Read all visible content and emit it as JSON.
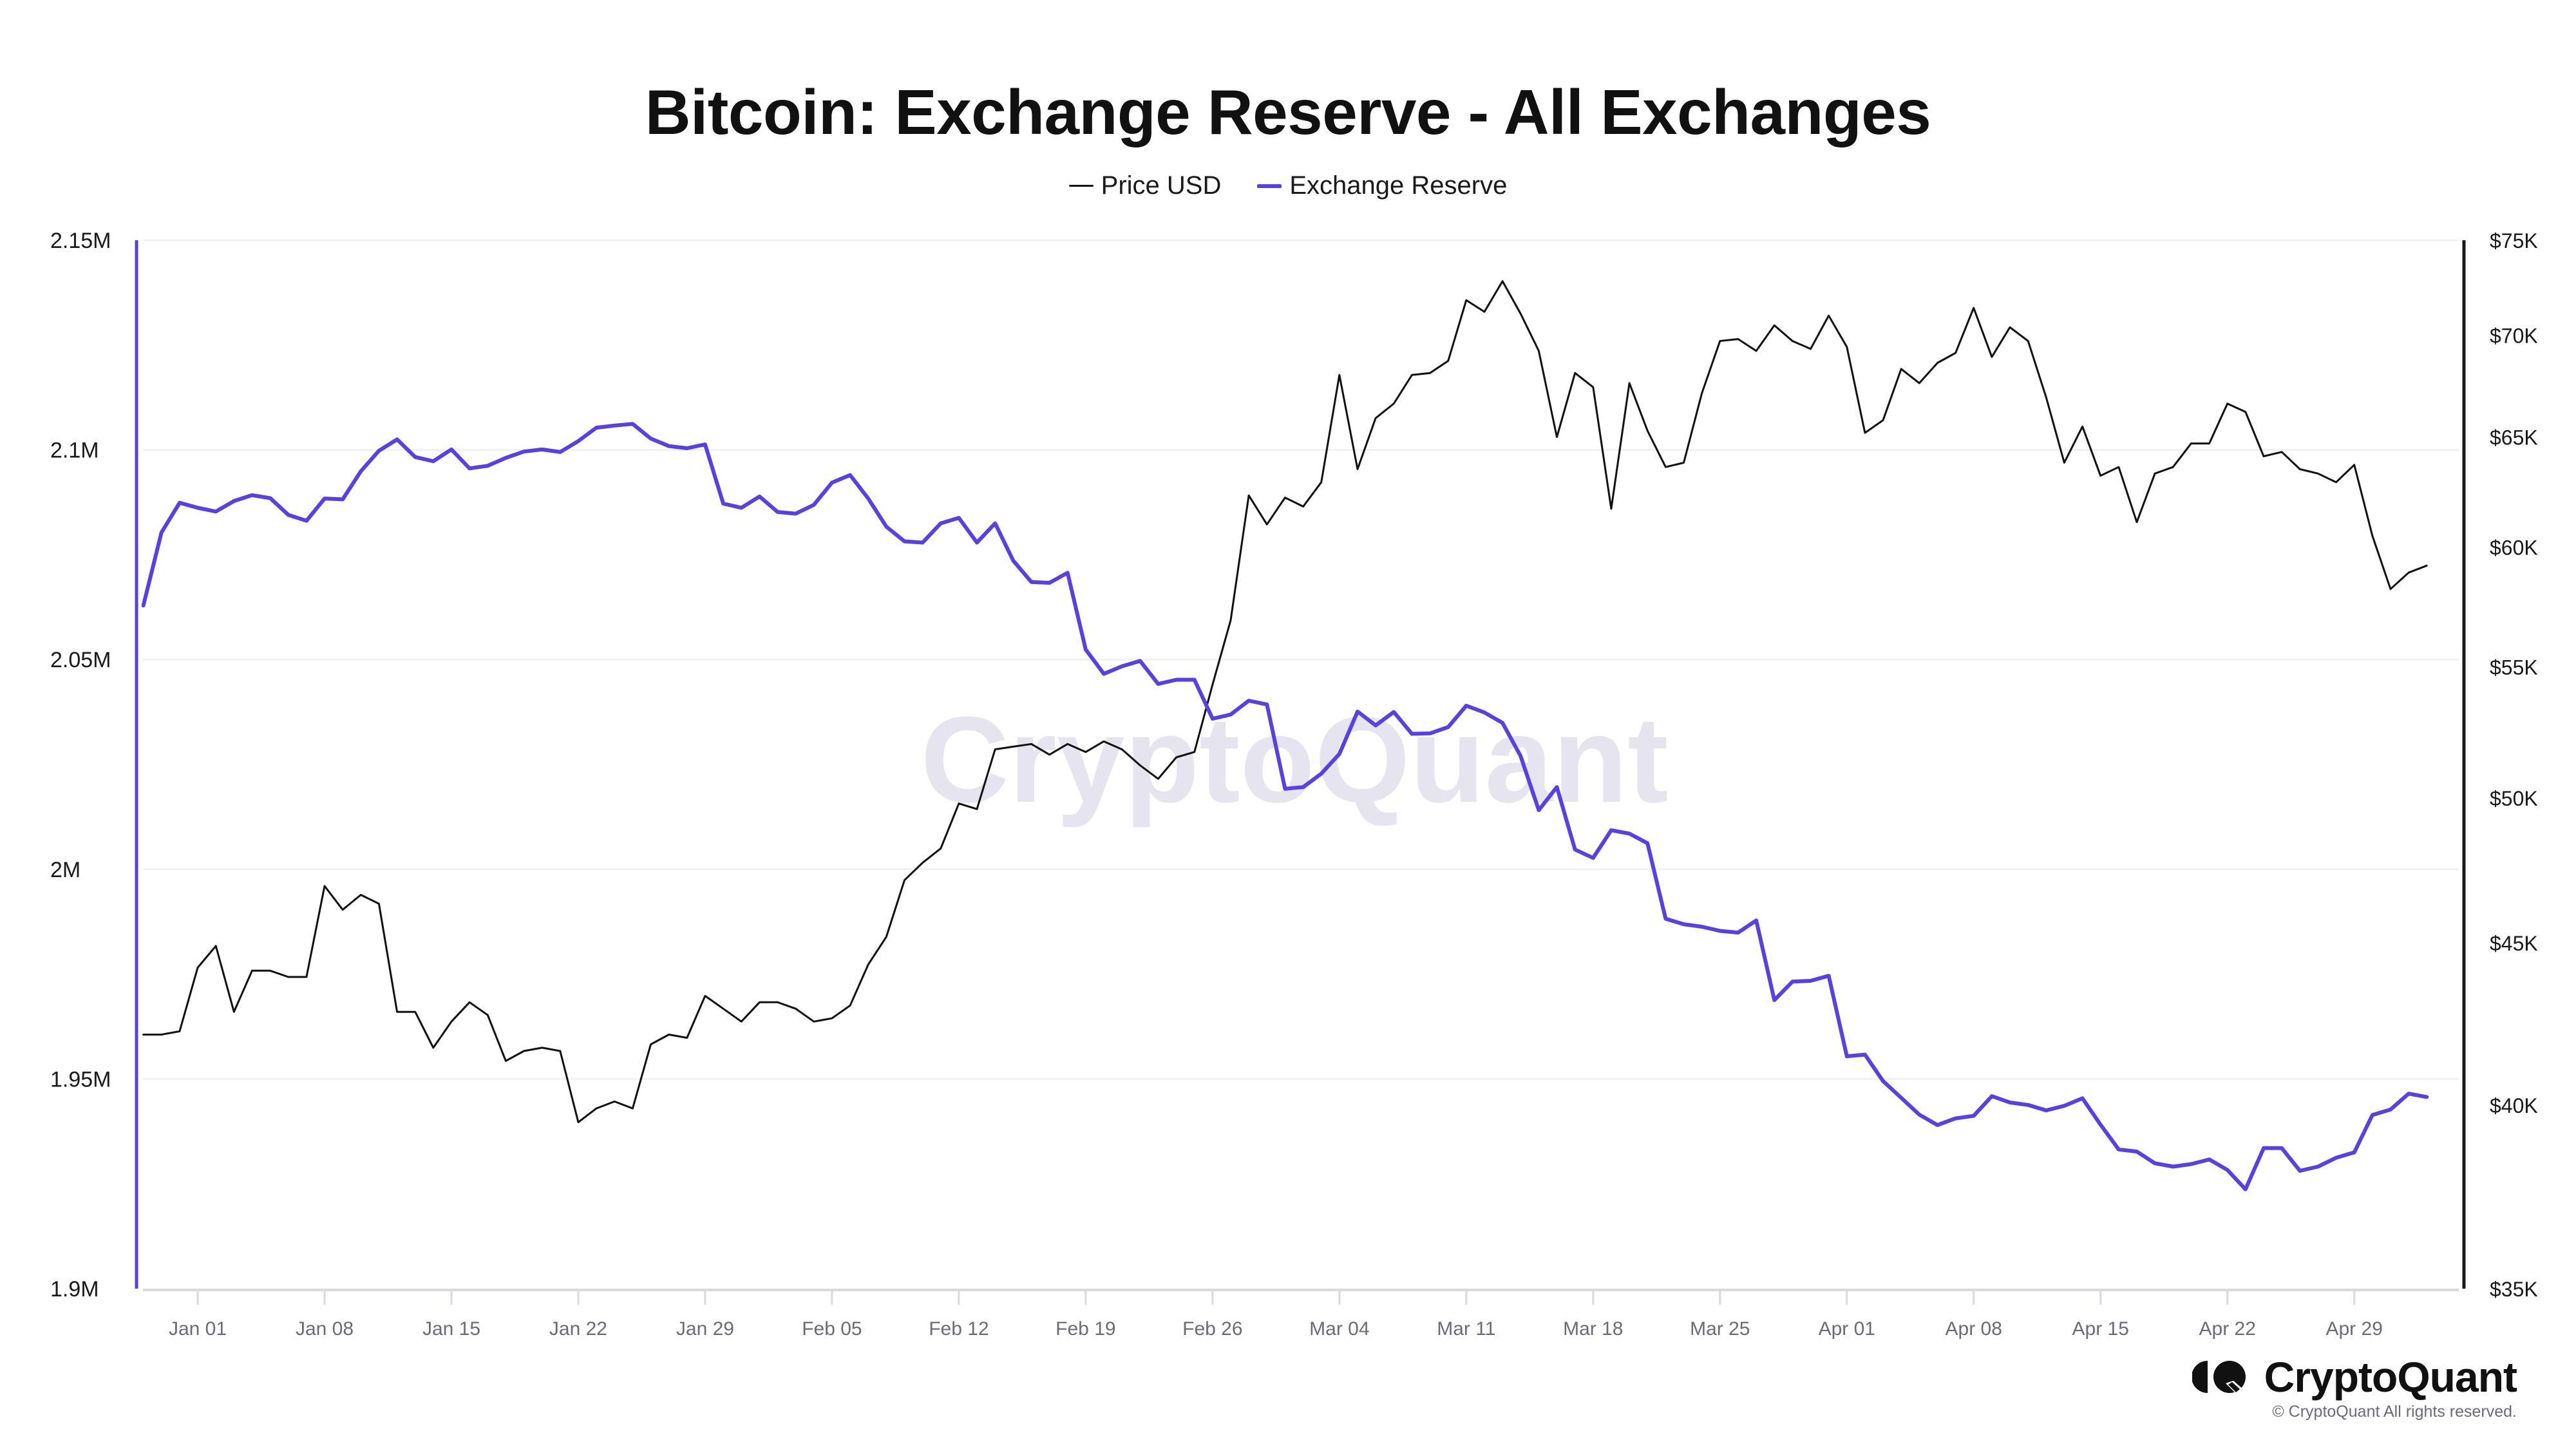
{
  "title": "Bitcoin: Exchange Reserve - All Exchanges",
  "legend": [
    {
      "label": "Price USD",
      "color": "#111111"
    },
    {
      "label": "Exchange Reserve",
      "color": "#5b3fe6"
    }
  ],
  "watermark": "CryptoQuant",
  "brand": {
    "name": "CryptoQuant",
    "copyright": "© CryptoQuant All rights reserved."
  },
  "chart_data": {
    "type": "line",
    "title": "Bitcoin: Exchange Reserve - All Exchanges",
    "xlabel": "",
    "x_start": "Dec 29",
    "x_end": "May 03",
    "x_interval": "daily",
    "x_tick_labels": [
      "Jan 01",
      "Jan 08",
      "Jan 15",
      "Jan 22",
      "Jan 29",
      "Feb 05",
      "Feb 12",
      "Feb 19",
      "Feb 26",
      "Mar 04",
      "Mar 11",
      "Mar 18",
      "Mar 25",
      "Apr 01",
      "Apr 08",
      "Apr 15",
      "Apr 22",
      "Apr 29"
    ],
    "x_tick_indices": [
      3,
      10,
      17,
      24,
      31,
      38,
      45,
      52,
      59,
      66,
      73,
      80,
      87,
      94,
      101,
      108,
      115,
      122
    ],
    "legend_position": "top-center",
    "grid": true,
    "left_axis": {
      "label": "Exchange Reserve",
      "range": [
        1900000,
        2150000
      ],
      "scale": "linear",
      "tick_values": [
        1900000,
        1950000,
        2000000,
        2050000,
        2100000,
        2150000
      ],
      "tick_labels": [
        "1.9M",
        "1.95M",
        "2M",
        "2.05M",
        "2.1M",
        "2.15M"
      ]
    },
    "right_axis": {
      "label": "Price USD",
      "range": [
        35000,
        75000
      ],
      "scale": "log",
      "tick_values": [
        35000,
        40000,
        45000,
        50000,
        55000,
        60000,
        65000,
        70000,
        75000
      ],
      "tick_labels": [
        "$35K",
        "$40K",
        "$45K",
        "$50K",
        "$55K",
        "$60K",
        "$65K",
        "$70K",
        "$75K"
      ]
    },
    "series": [
      {
        "name": "Price USD",
        "axis": "right",
        "color": "#111111",
        "values": [
          42100,
          42100,
          42200,
          44200,
          44900,
          42800,
          44100,
          44100,
          43900,
          43900,
          46900,
          46100,
          46600,
          46300,
          42800,
          42800,
          41700,
          42500,
          43100,
          42700,
          41300,
          41600,
          41700,
          41600,
          39500,
          39900,
          40100,
          39900,
          41800,
          42100,
          42000,
          43300,
          42900,
          42500,
          43100,
          43100,
          42900,
          42500,
          42600,
          43000,
          44300,
          45200,
          47100,
          47700,
          48200,
          49800,
          49600,
          51800,
          51900,
          52000,
          51600,
          52000,
          51700,
          52100,
          51800,
          51200,
          50700,
          51500,
          51700,
          54300,
          56900,
          62300,
          61000,
          62200,
          61800,
          62900,
          68000,
          63500,
          65900,
          66600,
          68000,
          68100,
          68700,
          71800,
          71200,
          72800,
          71100,
          69200,
          65000,
          68100,
          67400,
          61700,
          67600,
          65300,
          63600,
          63800,
          67100,
          69700,
          69800,
          69200,
          70500,
          69700,
          69300,
          71000,
          69400,
          65200,
          65800,
          68300,
          67600,
          68600,
          69100,
          71400,
          68900,
          70400,
          69700,
          66900,
          63800,
          65500,
          63200,
          63600,
          61100,
          63300,
          63600,
          64700,
          64700,
          66600,
          66200,
          64100,
          64300,
          63500,
          63300,
          62900,
          63700,
          60500,
          58200,
          58900,
          59200
        ]
      },
      {
        "name": "Exchange Reserve",
        "axis": "left",
        "color": "#5b3fe6",
        "values": [
          2062900,
          2080300,
          2087400,
          2086200,
          2085300,
          2087800,
          2089200,
          2088500,
          2084500,
          2083100,
          2088400,
          2088200,
          2094900,
          2099800,
          2102500,
          2098300,
          2097300,
          2100100,
          2095600,
          2096200,
          2098100,
          2099600,
          2100100,
          2099500,
          2102100,
          2105300,
          2105800,
          2106200,
          2102700,
          2100900,
          2100400,
          2101300,
          2087200,
          2086200,
          2088900,
          2085200,
          2084800,
          2086900,
          2092200,
          2094000,
          2088400,
          2081700,
          2078200,
          2077900,
          2082500,
          2083800,
          2077900,
          2082500,
          2073600,
          2068500,
          2068300,
          2070700,
          2052400,
          2046600,
          2048400,
          2049700,
          2044200,
          2045200,
          2045200,
          2035900,
          2036900,
          2040200,
          2039300,
          2019200,
          2019600,
          2022800,
          2027500,
          2037600,
          2034300,
          2037500,
          2032300,
          2032400,
          2033900,
          2039000,
          2037400,
          2034900,
          2027000,
          2014100,
          2019600,
          2004700,
          2002700,
          2009300,
          2008500,
          2006200,
          1988200,
          1986900,
          1986300,
          1985300,
          1984900,
          1987800,
          1968800,
          1973200,
          1973400,
          1974600,
          1955400,
          1955800,
          1949500,
          1945500,
          1941500,
          1939000,
          1940600,
          1941200,
          1945900,
          1944400,
          1943800,
          1942500,
          1943600,
          1945400,
          1939100,
          1933200,
          1932700,
          1929900,
          1929100,
          1929700,
          1930800,
          1928300,
          1923700,
          1933500,
          1933500,
          1928100,
          1929100,
          1931200,
          1932500,
          1941400,
          1942700,
          1946500,
          1945700
        ]
      }
    ]
  }
}
